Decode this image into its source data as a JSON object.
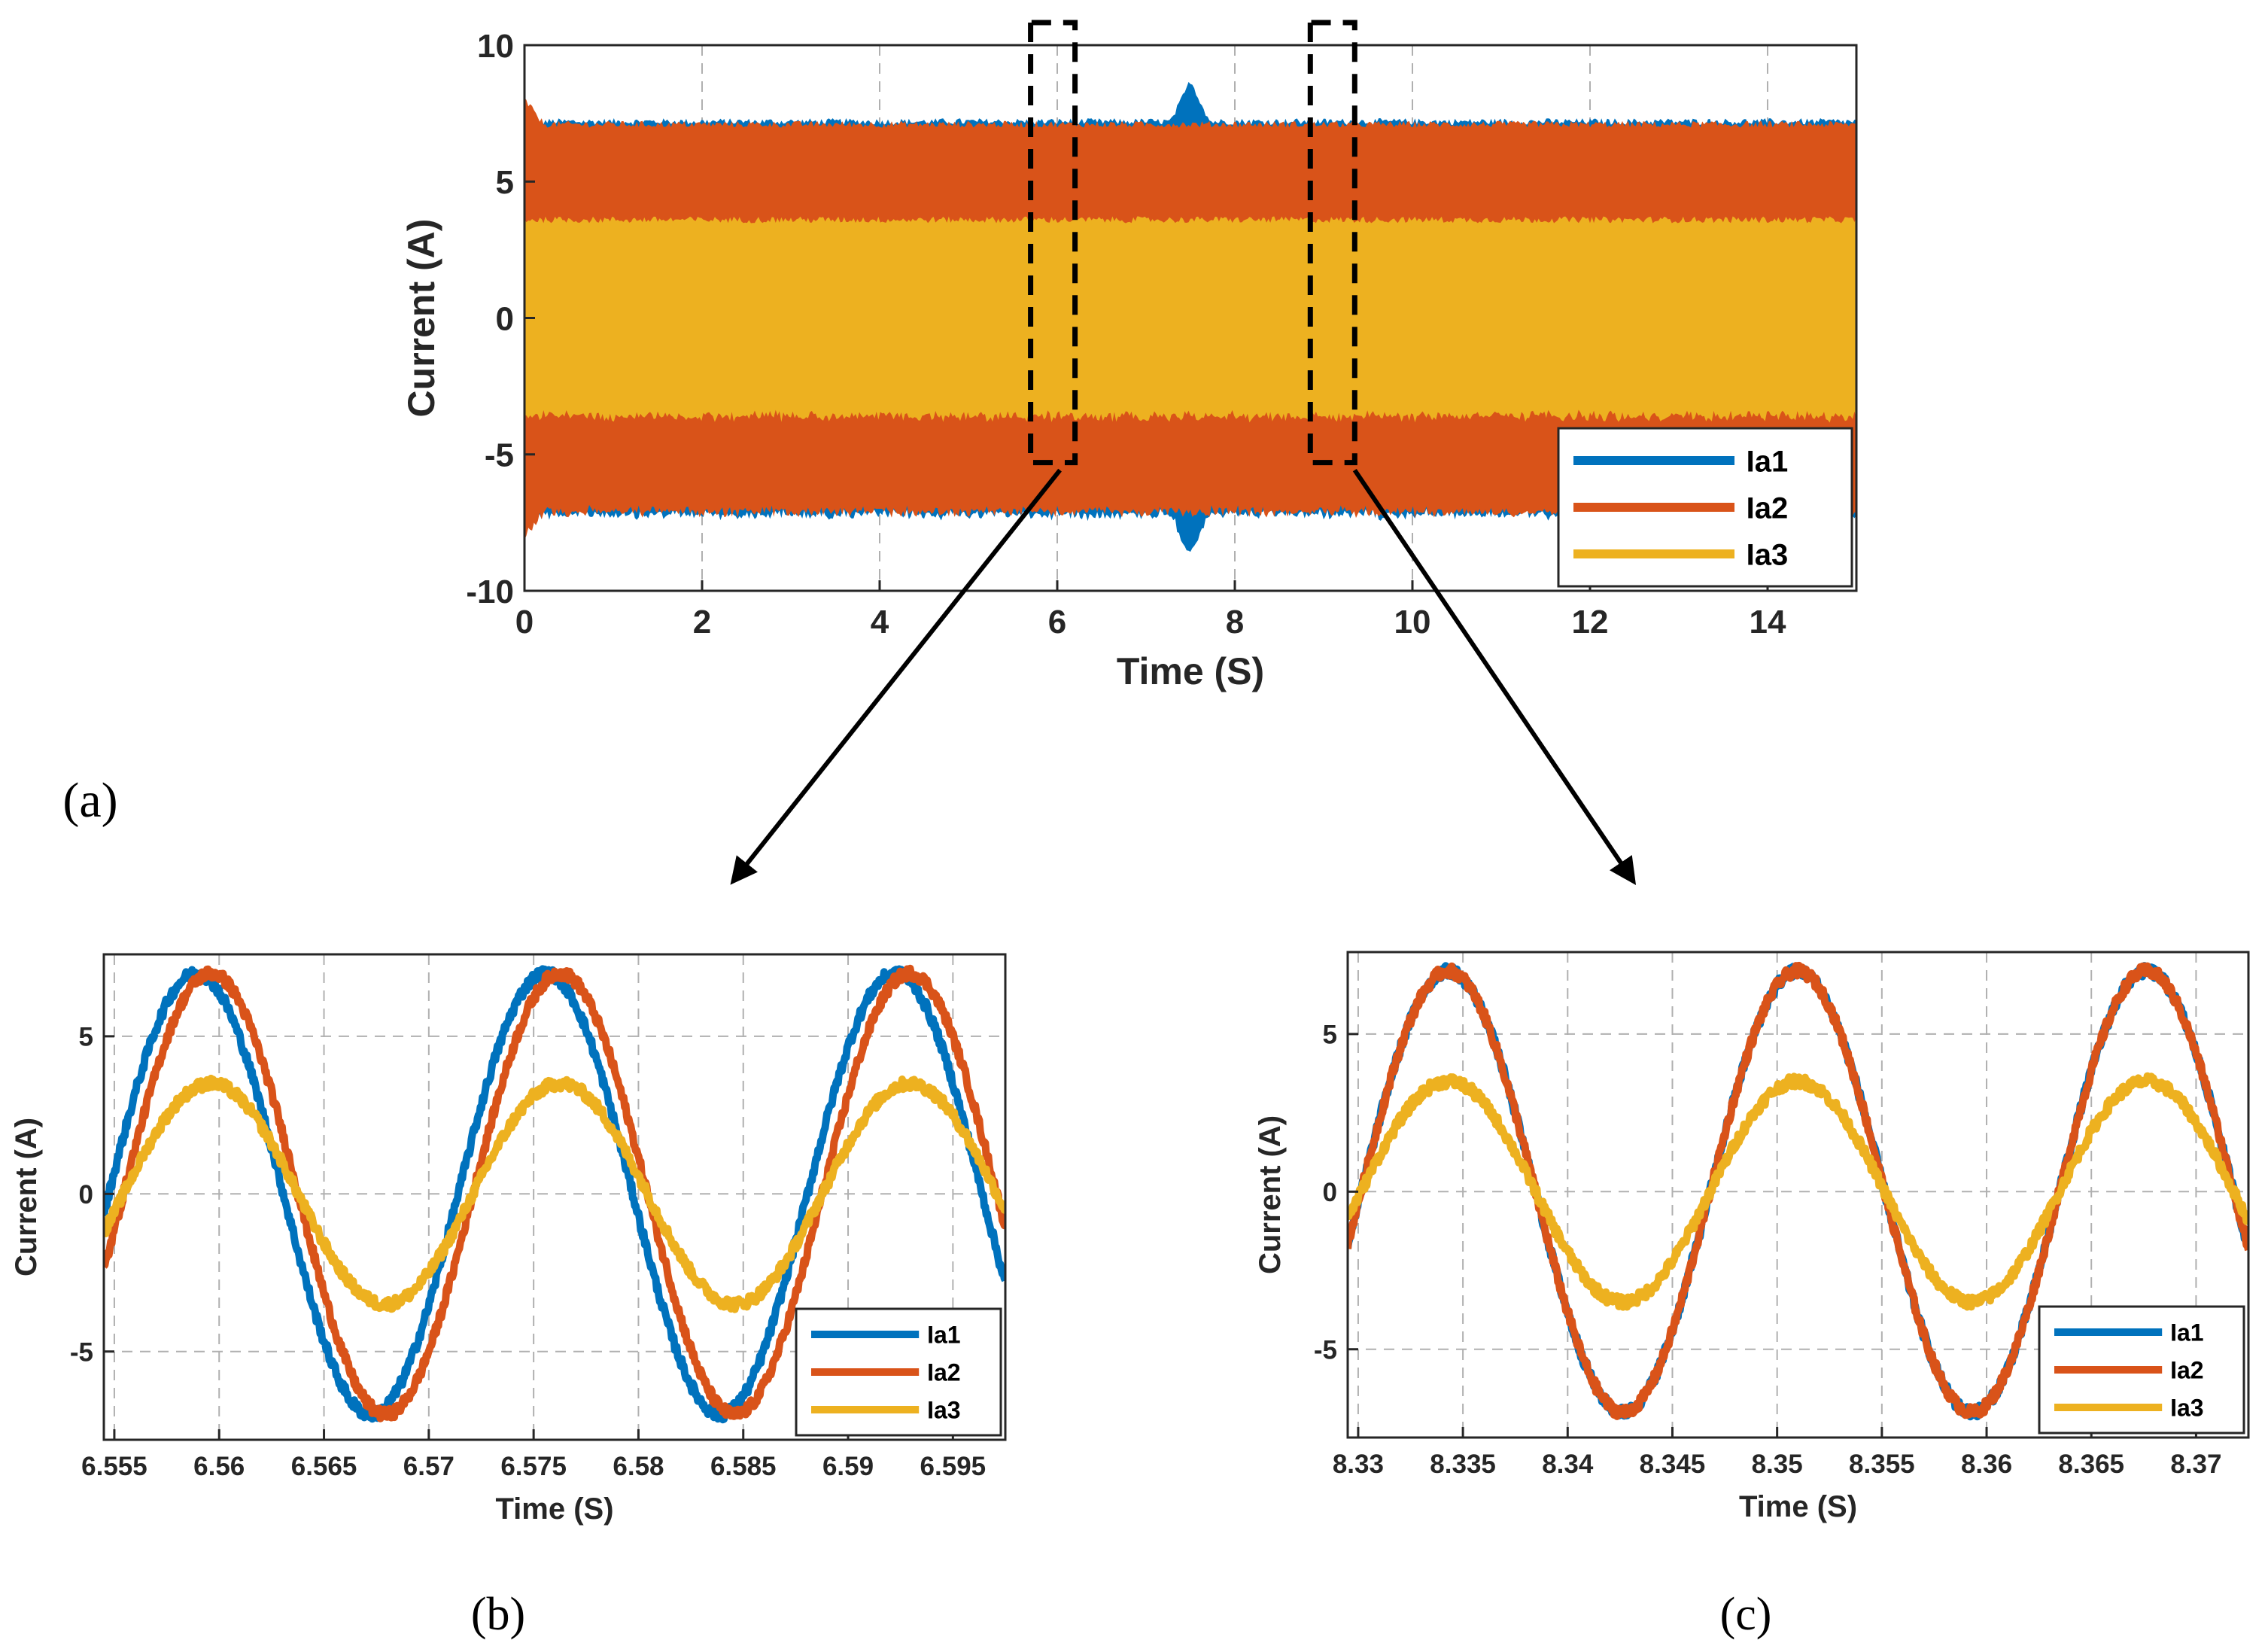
{
  "colors": {
    "ia1": "#0072BD",
    "ia2": "#D95319",
    "ia3": "#EDB120",
    "axis": "#262626",
    "grid": "#b0b0b0",
    "zoom_box": "#000000"
  },
  "chart_data": [
    {
      "id": "a",
      "type": "line",
      "caption": "(a)",
      "xlabel": "Time (S)",
      "ylabel": "Current (A)",
      "xlim": [
        0,
        15
      ],
      "ylim": [
        -10,
        10
      ],
      "xticks": [
        0,
        2,
        4,
        6,
        8,
        10,
        12,
        14
      ],
      "xtick_labels": [
        "0",
        "2",
        "4",
        "6",
        "8",
        "10",
        "12",
        "14"
      ],
      "yticks": [
        -10,
        -5,
        0,
        5,
        10
      ],
      "ytick_labels": [
        "-10",
        "-5",
        "0",
        "5",
        "10"
      ],
      "grid": true,
      "legend_position": "bottom-right",
      "series": [
        {
          "name": "Ia1",
          "kind": "envelope",
          "amplitude": 7.2,
          "transient": {
            "time": 7.5,
            "peak": 8.7
          }
        },
        {
          "name": "Ia2",
          "kind": "envelope",
          "amplitude": 7.1,
          "transient": {
            "time": 0.0,
            "peak": 8.0
          }
        },
        {
          "name": "Ia3",
          "kind": "envelope",
          "amplitude": 3.6
        }
      ],
      "zoom_regions": [
        {
          "x_from": 5.7,
          "x_to": 6.2,
          "target": "b"
        },
        {
          "x_from": 8.85,
          "x_to": 9.35,
          "target": "c"
        }
      ]
    },
    {
      "id": "b",
      "type": "line",
      "caption": "(b)",
      "xlabel": "Time (S)",
      "ylabel": "Current (A)",
      "xlim": [
        6.5545,
        6.5975
      ],
      "ylim": [
        -7.8,
        7.6
      ],
      "xticks": [
        6.555,
        6.56,
        6.565,
        6.57,
        6.575,
        6.58,
        6.585,
        6.59,
        6.595
      ],
      "xtick_labels": [
        "6.555",
        "6.56",
        "6.565",
        "6.57",
        "6.575",
        "6.58",
        "6.585",
        "6.59",
        "6.595"
      ],
      "yticks": [
        -5,
        0,
        5
      ],
      "ytick_labels": [
        "-5",
        "0",
        "5"
      ],
      "grid": true,
      "legend_position": "bottom-right",
      "frequency_hz": 60,
      "series": [
        {
          "name": "Ia1",
          "amplitude": 7.0,
          "peak_time": 6.5589
        },
        {
          "name": "Ia2",
          "amplitude": 7.0,
          "peak_time": 6.5596
        },
        {
          "name": "Ia3",
          "amplitude": 3.5,
          "peak_time": 6.5596
        }
      ]
    },
    {
      "id": "c",
      "type": "line",
      "caption": "(c)",
      "xlabel": "Time (S)",
      "ylabel": "Current (A)",
      "xlim": [
        8.3295,
        8.3725
      ],
      "ylim": [
        -7.8,
        7.6
      ],
      "xticks": [
        8.33,
        8.335,
        8.34,
        8.345,
        8.35,
        8.355,
        8.36,
        8.365,
        8.37
      ],
      "xtick_labels": [
        "8.33",
        "8.335",
        "8.34",
        "8.345",
        "8.35",
        "8.355",
        "8.36",
        "8.365",
        "8.37"
      ],
      "yticks": [
        -5,
        0,
        5
      ],
      "ytick_labels": [
        "-5",
        "0",
        "5"
      ],
      "grid": true,
      "legend_position": "bottom-right",
      "frequency_hz": 60,
      "series": [
        {
          "name": "Ia1",
          "amplitude": 7.0,
          "peak_time": 8.3343
        },
        {
          "name": "Ia2",
          "amplitude": 7.0,
          "peak_time": 8.3343
        },
        {
          "name": "Ia3",
          "amplitude": 3.5,
          "peak_time": 8.3343
        }
      ]
    }
  ]
}
